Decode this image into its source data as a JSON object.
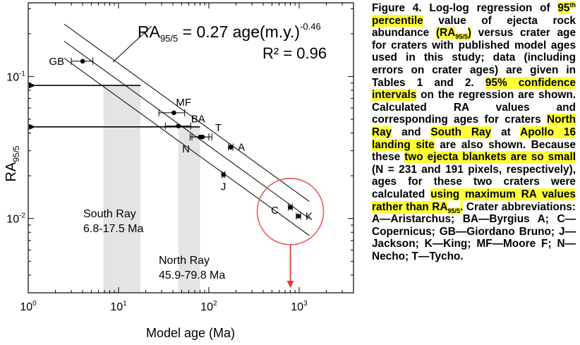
{
  "chart_data": {
    "type": "scatter",
    "scale": "log-log",
    "xlabel": "Model age (Ma)",
    "ylabel_main": "RA",
    "ylabel_sub": "95/5",
    "xlim": [
      1,
      4000
    ],
    "ylim": [
      0.003,
      0.33
    ],
    "x_ticks": [
      {
        "value": 1,
        "base": "10",
        "exp": "0"
      },
      {
        "value": 10,
        "base": "10",
        "exp": "1"
      },
      {
        "value": 100,
        "base": "10",
        "exp": "2"
      },
      {
        "value": 1000,
        "base": "10",
        "exp": "3"
      }
    ],
    "y_ticks": [
      {
        "value": 0.1,
        "base": "10",
        "exp": "-1"
      },
      {
        "value": 0.01,
        "base": "10",
        "exp": "-2"
      }
    ],
    "equation": {
      "lhs": "RA",
      "sub": "95/5",
      "mid": " = 0.27 age(m.y.)",
      "exp": "-0.46"
    },
    "r_squared": "R² = 0.96",
    "regression": {
      "coef": 0.27,
      "exponent": -0.46
    },
    "confidence_factors": [
      1.32,
      0.76
    ],
    "points": [
      {
        "label": "GB",
        "x": 4,
        "y": 0.128,
        "xerr": [
          3.0,
          5.2
        ]
      },
      {
        "label": "MF",
        "x": 41,
        "y": 0.0555,
        "xerr": [
          28,
          54
        ]
      },
      {
        "label": "BA",
        "x": 46,
        "y": 0.0448,
        "xerr": [
          33,
          63
        ]
      },
      {
        "label": "T",
        "x": 85,
        "y": 0.0375,
        "xerr": [
          65,
          108
        ]
      },
      {
        "label": "N",
        "x": 80,
        "y": 0.0375,
        "xerr": [
          62,
          100
        ]
      },
      {
        "label": "A",
        "x": 175,
        "y": 0.0318,
        "xerr": [
          165,
          185
        ]
      },
      {
        "label": "J",
        "x": 145,
        "y": 0.0204,
        "xerr": [
          140,
          151
        ]
      },
      {
        "label": "C",
        "x": 800,
        "y": 0.012,
        "xerr": [
          760,
          840
        ]
      },
      {
        "label": "K",
        "x": 980,
        "y": 0.0104,
        "xerr": [
          930,
          1040
        ]
      }
    ],
    "bands": [
      {
        "name": "South Ray",
        "range_text": "6.8-17.5 Ma",
        "x_range": [
          6.8,
          17.5
        ],
        "ra": 0.0865
      },
      {
        "name": "North Ray",
        "range_text": "45.9-79.8 Ma",
        "x_range": [
          45.9,
          79.8
        ],
        "ra": 0.0442
      }
    ],
    "highlight_circle": {
      "x": 800,
      "y": 0.0112,
      "arrow_to_x": 800
    }
  },
  "caption": [
    {
      "t": "Figure 4. Log-log regression of "
    },
    {
      "t": "95",
      "hl": true
    },
    {
      "t": "th",
      "hl": true,
      "sup": true
    },
    {
      "t": " percentile",
      "hl": true
    },
    {
      "t": " value of ejecta rock abundance "
    },
    {
      "t": "(RA",
      "hl": true
    },
    {
      "t": "95/5",
      "hl": true,
      "sub": true
    },
    {
      "t": ")",
      "hl": true
    },
    {
      "t": " versus crater age for craters with published model ages used in this study; data (including errors on crater ages) are given in Tables 1 and 2. "
    },
    {
      "t": "95% confidence intervals",
      "hl": true
    },
    {
      "t": " on the regression are shown. Calculated RA values and corresponding ages for craters "
    },
    {
      "t": "North Ray",
      "hl": true
    },
    {
      "t": " and "
    },
    {
      "t": "South Ray",
      "hl": true
    },
    {
      "t": " at "
    },
    {
      "t": "Apollo 16 landing site",
      "hl": true
    },
    {
      "t": " are also shown. Because these "
    },
    {
      "t": "two ejecta blankets are so small",
      "hl": true
    },
    {
      "t": " (N = 231 and 191 pixels, respectively), ages for these two craters were calculated "
    },
    {
      "t": "using maximum RA values rather than RA",
      "hl": true
    },
    {
      "t": "95/5",
      "hl": true,
      "sub": true
    },
    {
      "t": ".",
      "hl": true
    },
    {
      "t": " Crater abbreviations: A—Aristarchus; BA—Byrgius A; C—Copernicus; GB—Giordano Bruno; J—Jackson; K—King; MF—Moore F; N—Necho; T—Tycho."
    }
  ]
}
